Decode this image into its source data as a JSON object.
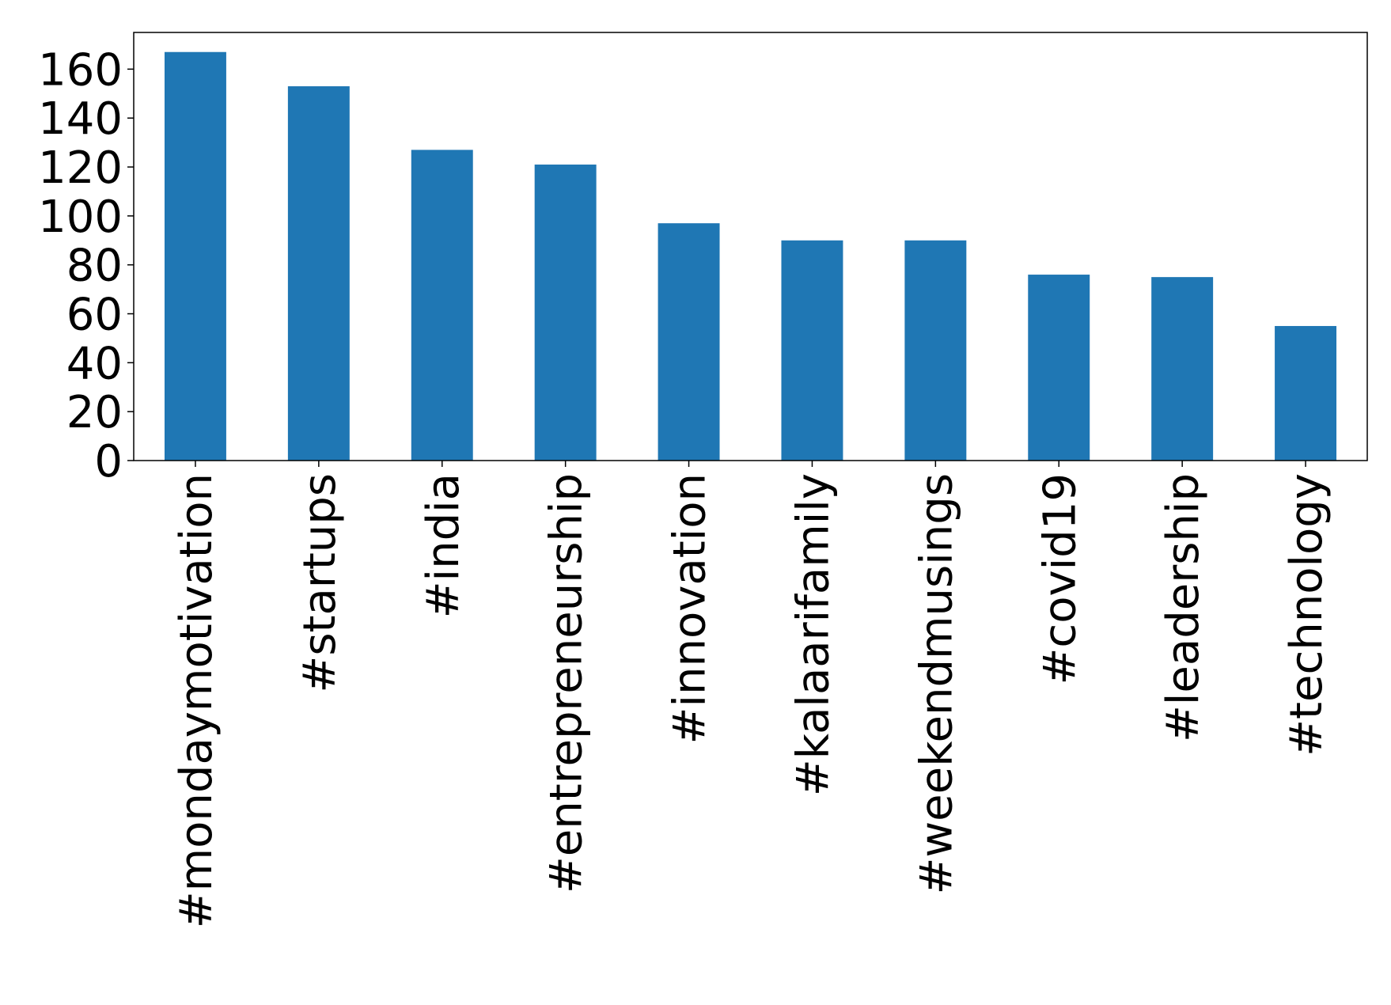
{
  "chart_data": {
    "type": "bar",
    "categories": [
      "#mondaymotivation",
      "#startups",
      "#india",
      "#entrepreneurship",
      "#innovation",
      "#kalaarifamily",
      "#weekendmusings",
      "#covid19",
      "#leadership",
      "#technology"
    ],
    "values": [
      167,
      153,
      127,
      121,
      97,
      90,
      90,
      76,
      75,
      55
    ],
    "color": "#1f77b4",
    "ylim": [
      0,
      175
    ],
    "yticks": [
      0,
      20,
      40,
      60,
      80,
      100,
      120,
      140,
      160
    ],
    "grid": false
  }
}
